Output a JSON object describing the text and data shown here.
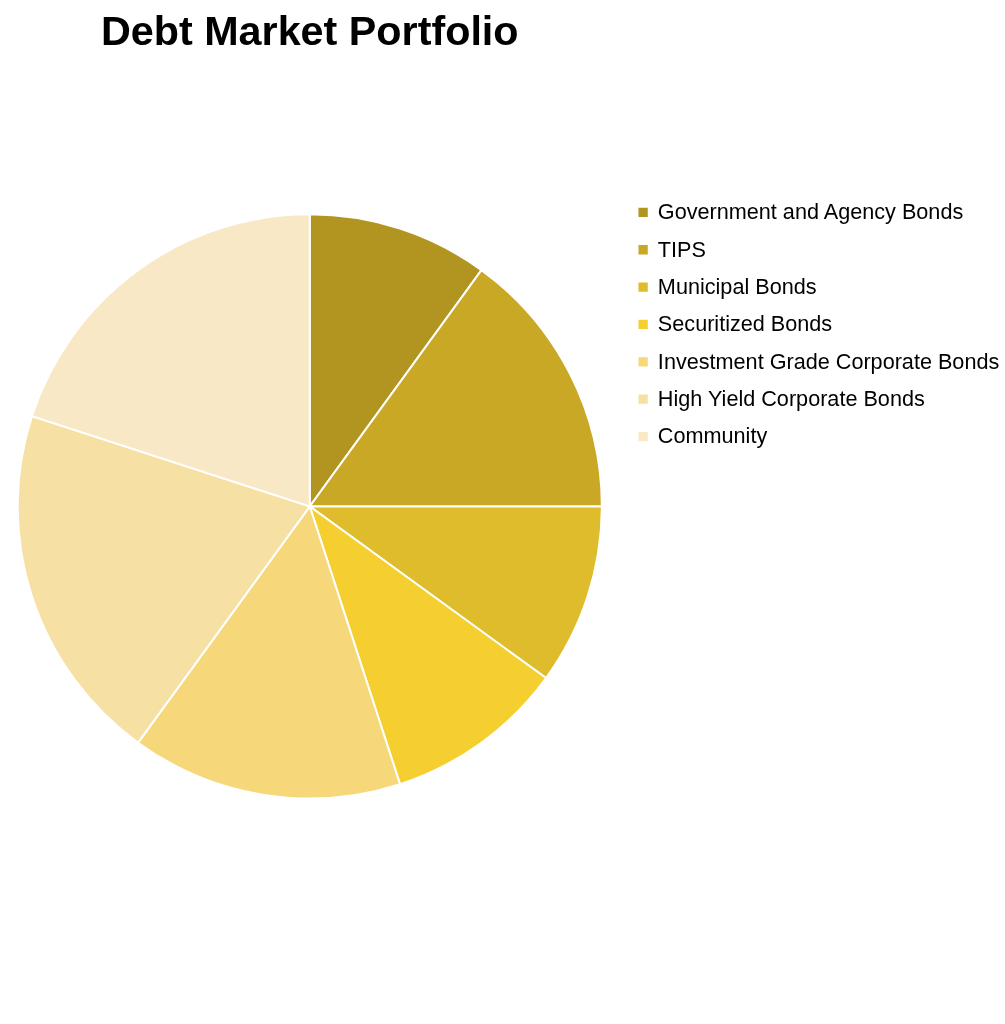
{
  "chart_data": {
    "type": "pie",
    "title": "Debt Market Portfolio",
    "categories": [
      "Government and Agency Bonds",
      "TIPS",
      "Municipal Bonds",
      "Securitized Bonds",
      "Investment Grade Corporate Bonds",
      "High Yield Corporate Bonds",
      "Community"
    ],
    "values": [
      10,
      15,
      10,
      10,
      15,
      20,
      20
    ],
    "colors": [
      "#b29520",
      "#c9a826",
      "#dfbc2b",
      "#f4cf2f",
      "#f6d77a",
      "#f7e0a3",
      "#f9e8c6"
    ],
    "legend": "right"
  }
}
